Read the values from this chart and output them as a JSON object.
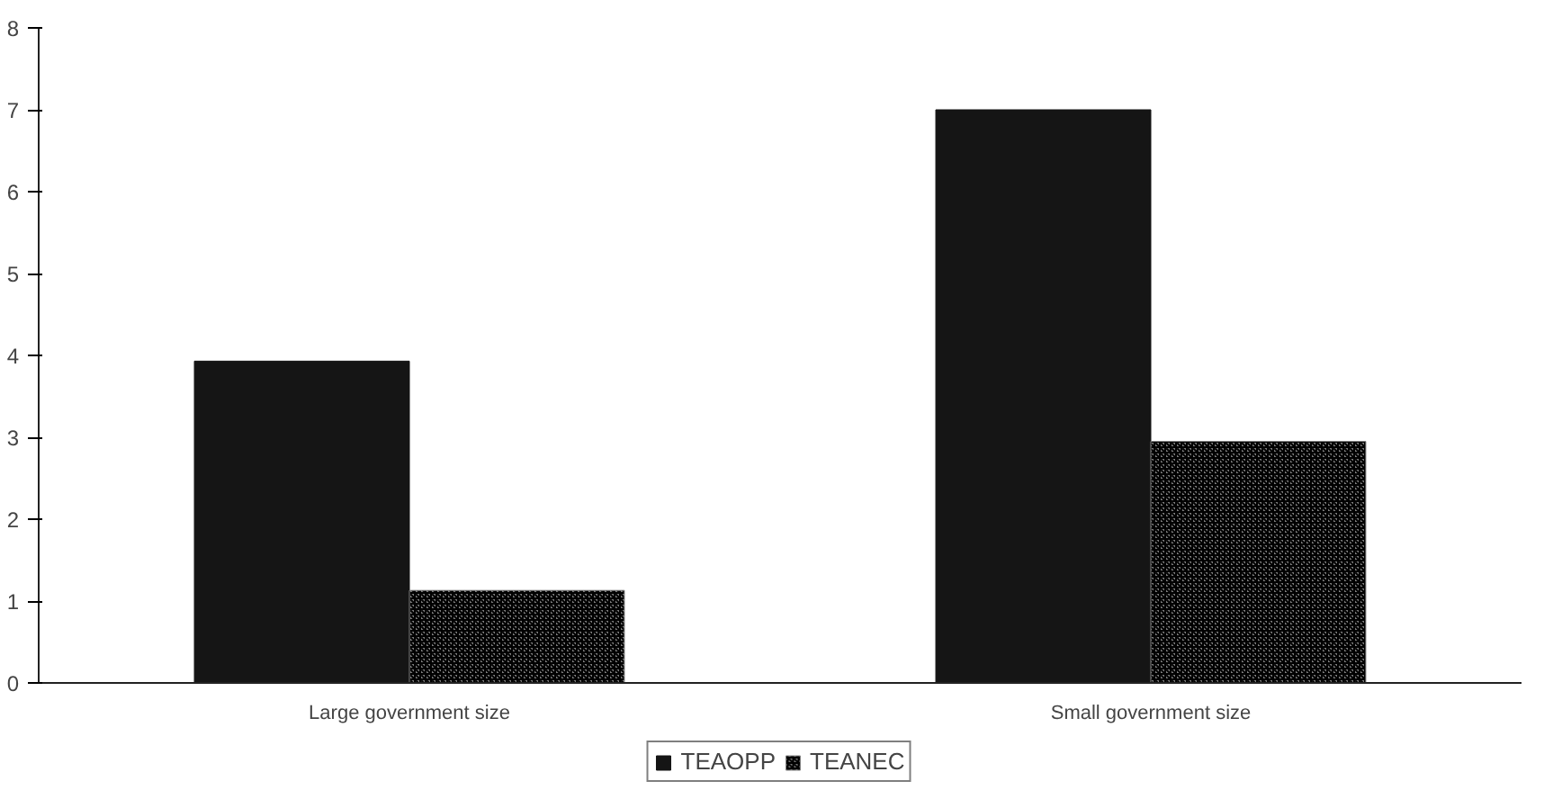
{
  "chart_data": {
    "type": "bar",
    "categories": [
      "Large government size",
      "Small government size"
    ],
    "series": [
      {
        "name": "TEAOPP",
        "color": "#151515",
        "values": [
          3.93,
          7.0
        ]
      },
      {
        "name": "TEANEC",
        "color": "#808080",
        "values": [
          1.13,
          2.95
        ]
      }
    ],
    "ylim": [
      0,
      8
    ],
    "yticks": [
      0,
      1,
      2,
      3,
      4,
      5,
      6,
      7,
      8
    ],
    "grid": false,
    "legend": "bottom"
  }
}
